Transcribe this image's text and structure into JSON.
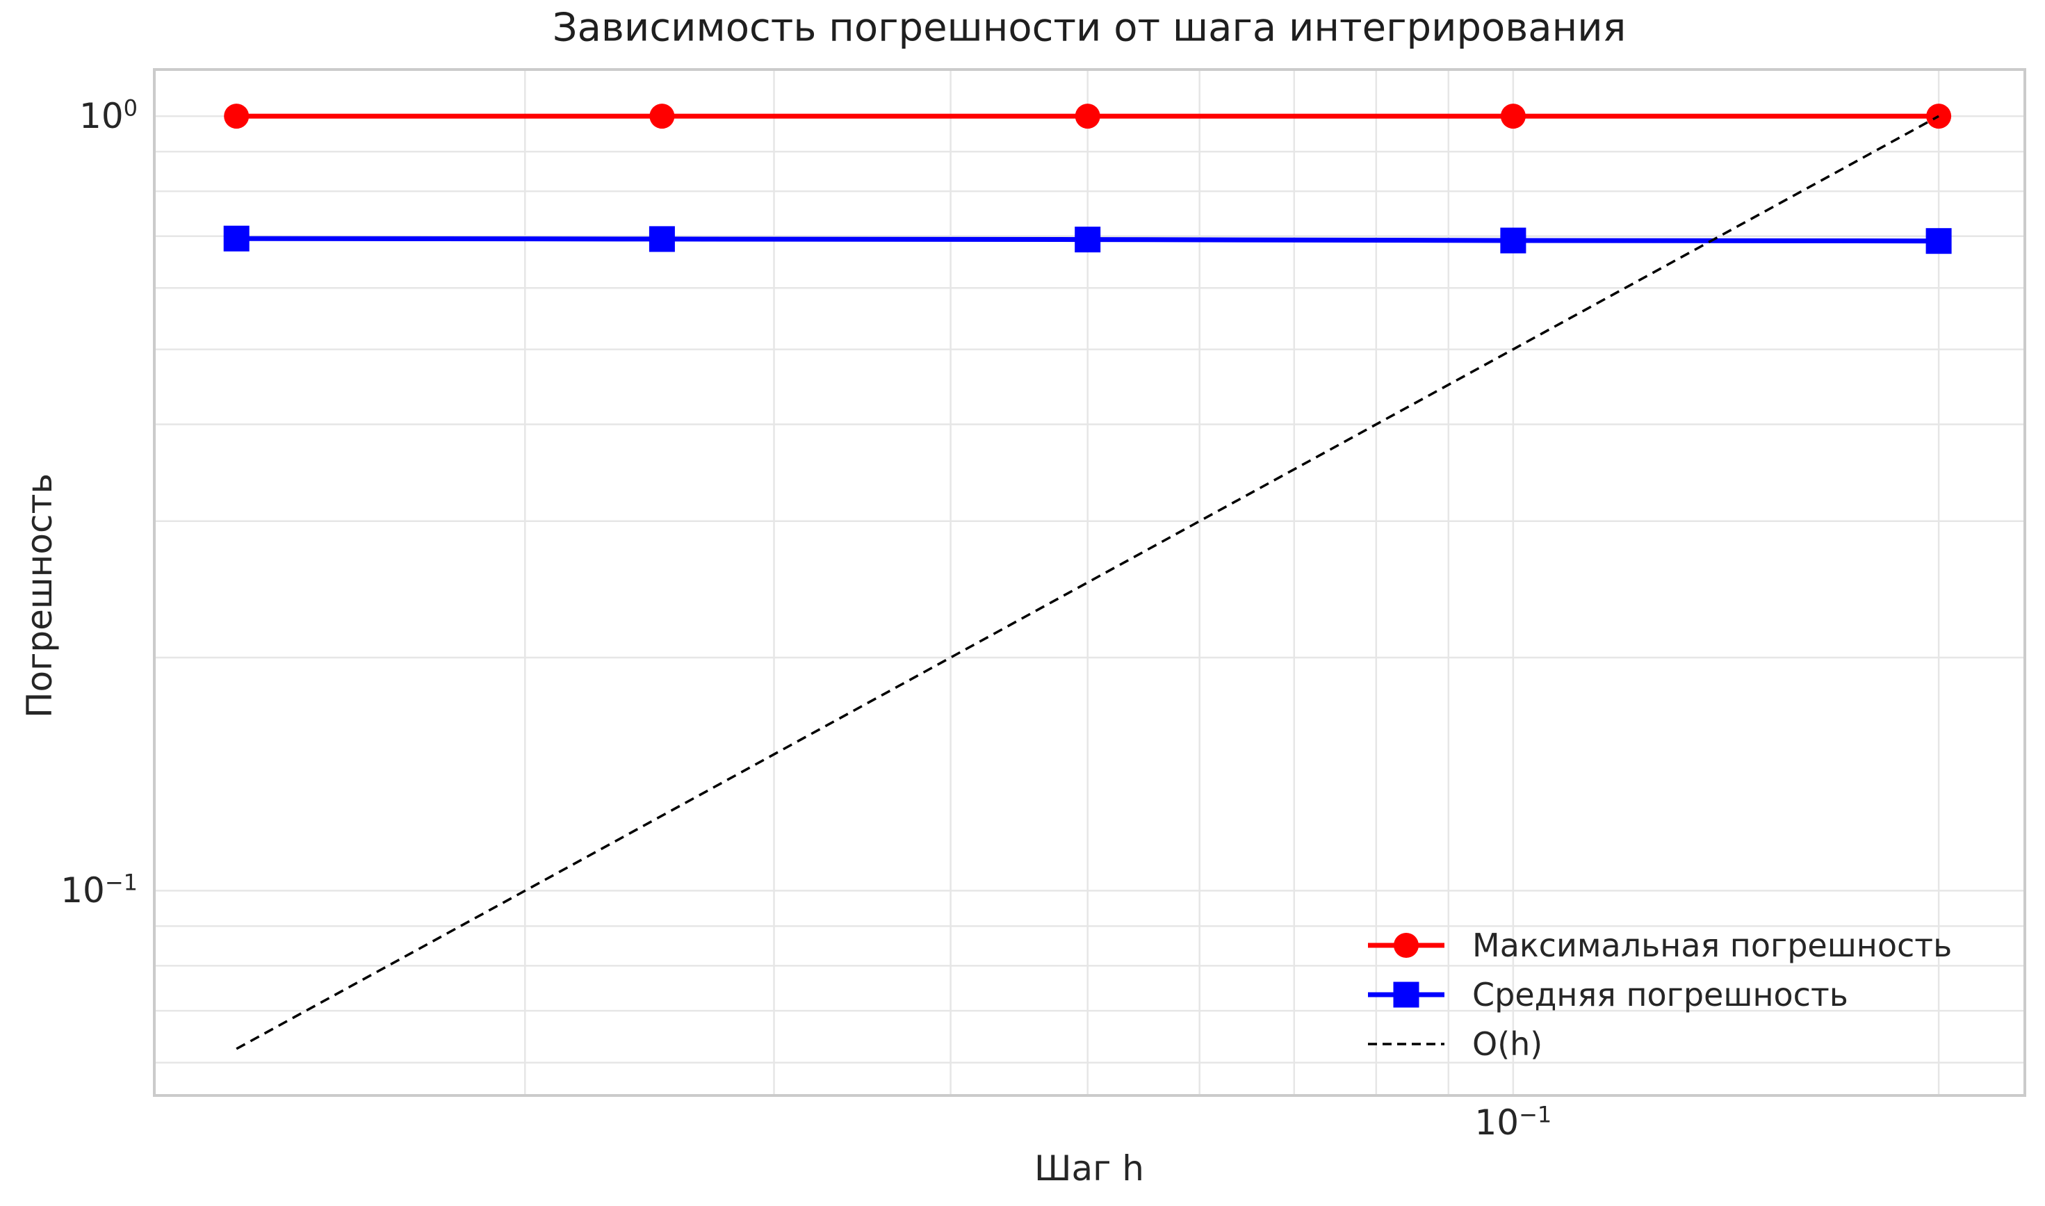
{
  "chart_data": {
    "type": "line",
    "title": "Зависимость погрешности от шага интегрирования",
    "xlabel": "Шаг h",
    "ylabel": "Погрешность",
    "x_scale": "log",
    "y_scale": "log",
    "xlim": [
      0.010934,
      0.230122
    ],
    "ylim": [
      0.054409,
      1.148727
    ],
    "grid": {
      "which": "both",
      "on": true
    },
    "legend_position": "lower right",
    "legend_frame": false,
    "x": [
      0.0125,
      0.025,
      0.05,
      0.1,
      0.2
    ],
    "series": [
      {
        "name": "Максимальная погрешность",
        "color": "#ff0000",
        "marker": "circle",
        "linestyle": "solid",
        "values": [
          1.0,
          1.0,
          1.0,
          1.0,
          1.0
        ]
      },
      {
        "name": "Средняя погрешность",
        "color": "#0000ff",
        "marker": "square",
        "linestyle": "solid",
        "values": [
          0.695,
          0.694,
          0.693,
          0.691,
          0.69
        ]
      },
      {
        "name": "O(h)",
        "color": "#000000",
        "marker": "none",
        "linestyle": "dashed",
        "x": [
          0.0125,
          0.2
        ],
        "values": [
          0.0625,
          1.0
        ]
      }
    ],
    "x_ticks": [
      {
        "value": 0.1,
        "base": "10",
        "exp": "−1"
      }
    ],
    "y_ticks": [
      {
        "value": 1.0,
        "base": "10",
        "exp": "0"
      },
      {
        "value": 0.1,
        "base": "10",
        "exp": "−1"
      }
    ]
  },
  "style": {
    "background": "#ffffff",
    "spine_color": "#cbcbcb",
    "grid_color": "#e6e6e6",
    "text_color": "#262626",
    "title_color": "#1f1f1f"
  }
}
